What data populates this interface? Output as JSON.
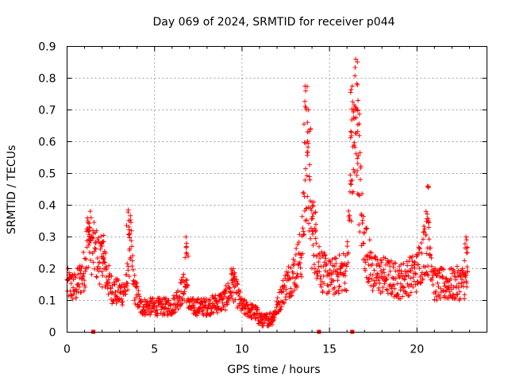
{
  "chart_data": {
    "type": "scatter",
    "title": "Day 069 of 2024, SRMTID for receiver p044",
    "xlabel": "GPS time / hours",
    "ylabel": "SRMTID / TECUs",
    "xlim": [
      0,
      24
    ],
    "ylim": [
      0,
      0.9
    ],
    "xticks": [
      0,
      5,
      10,
      15,
      20
    ],
    "yticks": [
      0,
      0.1,
      0.2,
      0.3,
      0.4,
      0.5,
      0.6,
      0.7,
      0.8,
      0.9
    ],
    "xtick_labels": [
      "0",
      "5",
      "10",
      "15",
      "20"
    ],
    "ytick_labels": [
      "0",
      "0.1",
      "0.2",
      "0.3",
      "0.4",
      "0.5",
      "0.6",
      "0.7",
      "0.8",
      "0.9"
    ],
    "grid": true,
    "marker": "plus",
    "color": "#ff0000",
    "series": [
      {
        "name": "SRMTID",
        "profile": [
          [
            0.0,
            0.15
          ],
          [
            0.5,
            0.14
          ],
          [
            1.0,
            0.2
          ],
          [
            1.2,
            0.31
          ],
          [
            1.5,
            0.26
          ],
          [
            2.0,
            0.22
          ],
          [
            2.5,
            0.14
          ],
          [
            3.0,
            0.12
          ],
          [
            3.4,
            0.14
          ],
          [
            3.6,
            0.3
          ],
          [
            3.8,
            0.15
          ],
          [
            4.2,
            0.08
          ],
          [
            5.0,
            0.08
          ],
          [
            6.0,
            0.08
          ],
          [
            6.8,
            0.15
          ],
          [
            7.0,
            0.08
          ],
          [
            8.0,
            0.08
          ],
          [
            9.0,
            0.1
          ],
          [
            9.5,
            0.15
          ],
          [
            10.0,
            0.08
          ],
          [
            10.8,
            0.06
          ],
          [
            11.2,
            0.03
          ],
          [
            11.8,
            0.05
          ],
          [
            12.5,
            0.15
          ],
          [
            13.0,
            0.19
          ],
          [
            13.4,
            0.25
          ],
          [
            13.7,
            0.52
          ],
          [
            14.0,
            0.3
          ],
          [
            14.3,
            0.25
          ],
          [
            14.6,
            0.19
          ],
          [
            15.0,
            0.17
          ],
          [
            15.5,
            0.18
          ],
          [
            16.0,
            0.2
          ],
          [
            16.3,
            0.55
          ],
          [
            16.6,
            0.6
          ],
          [
            16.9,
            0.3
          ],
          [
            17.5,
            0.18
          ],
          [
            18.0,
            0.18
          ],
          [
            19.0,
            0.16
          ],
          [
            20.0,
            0.19
          ],
          [
            20.5,
            0.28
          ],
          [
            20.8,
            0.25
          ],
          [
            21.0,
            0.15
          ],
          [
            22.0,
            0.15
          ],
          [
            22.8,
            0.16
          ]
        ],
        "peaks": [
          [
            1.2,
            0.345
          ],
          [
            2.1,
            0.305
          ],
          [
            3.5,
            0.385
          ],
          [
            6.8,
            0.3
          ],
          [
            9.5,
            0.2
          ],
          [
            13.6,
            0.775
          ],
          [
            13.8,
            0.7
          ],
          [
            14.1,
            0.41
          ],
          [
            16.3,
            0.775
          ],
          [
            16.5,
            0.86
          ],
          [
            16.6,
            0.7
          ],
          [
            20.6,
            0.46
          ],
          [
            22.8,
            0.3
          ]
        ],
        "point_count": 1400,
        "time_range": [
          0.0,
          22.9
        ]
      }
    ],
    "gap_flags_hours": [
      1.5,
      14.4,
      16.3
    ]
  }
}
